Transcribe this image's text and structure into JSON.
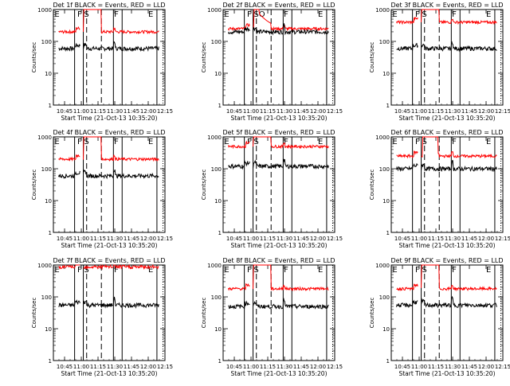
{
  "chart_data": {
    "type": "line",
    "xlabel": "Start Time (21-Oct-13 10:35:20)",
    "ylabel": "Counts/sec",
    "yscale": "log",
    "ylim": [
      1,
      1000
    ],
    "xlim": [
      10.583,
      12.25
    ],
    "x_ticks": [
      10.75,
      11.0,
      11.25,
      11.5,
      11.75,
      12.0,
      12.25
    ],
    "x_tick_labels": [
      "10:45",
      "11:00",
      "11:15",
      "11:30",
      "11:45",
      "12:00",
      "12:15"
    ],
    "y_ticks": [
      1,
      10,
      100,
      1000
    ],
    "y_tick_labels": [
      "1",
      "10",
      "100",
      "1000"
    ],
    "series_colors": {
      "Events": "#000000",
      "LLD": "#ff0000"
    },
    "panels": [
      {
        "title": "Det 1f BLACK = Events, RED = LLD",
        "events": 60,
        "lld": 200,
        "lld_mode": "flat",
        "lld_peak": 1200,
        "solid_lines": [
          10.9,
          11.03,
          11.48,
          11.61,
          12.13
        ],
        "dashed_lines": [
          11.08,
          11.3
        ],
        "dotted_lines": [
          12.22
        ],
        "region_labels": [
          {
            "t": "E",
            "x": 10.6
          },
          {
            "t": "F",
            "x": 10.94
          },
          {
            "t": "S",
            "x": 11.04
          },
          {
            "t": "F",
            "x": 11.49
          },
          {
            "t": "E",
            "x": 12.0
          }
        ]
      },
      {
        "title": "Det 2f BLACK = Events, RED = LLD",
        "events": 200,
        "lld": 250,
        "lld_mode": "flare",
        "lld_peak": 1200,
        "solid_lines": [
          10.9,
          11.03,
          11.48,
          11.61,
          12.13
        ],
        "dashed_lines": [
          11.08,
          11.3
        ],
        "dotted_lines": [
          12.22
        ],
        "region_labels": [
          {
            "t": "E",
            "x": 10.6
          },
          {
            "t": "F",
            "x": 10.94
          },
          {
            "t": "SO",
            "x": 11.04
          },
          {
            "t": "F",
            "x": 11.49
          },
          {
            "t": "E",
            "x": 12.0
          }
        ]
      },
      {
        "title": "Det 3f BLACK = Events, RED = LLD",
        "events": 60,
        "lld": 400,
        "lld_mode": "flat",
        "lld_peak": 1200,
        "solid_lines": [
          10.9,
          11.03,
          11.48,
          11.61,
          12.13
        ],
        "dashed_lines": [
          11.08,
          11.3
        ],
        "dotted_lines": [
          12.22
        ],
        "region_labels": [
          {
            "t": "E",
            "x": 10.6
          },
          {
            "t": "F",
            "x": 10.94
          },
          {
            "t": "S",
            "x": 11.04
          },
          {
            "t": "F",
            "x": 11.49
          },
          {
            "t": "E",
            "x": 12.0
          }
        ]
      },
      {
        "title": "Det 4f BLACK = Events, RED = LLD",
        "events": 60,
        "lld": 200,
        "lld_mode": "flat",
        "lld_peak": 1200,
        "solid_lines": [
          10.9,
          11.03,
          11.48,
          11.61,
          12.13
        ],
        "dashed_lines": [
          11.08,
          11.3
        ],
        "dotted_lines": [
          12.22
        ],
        "region_labels": [
          {
            "t": "E",
            "x": 10.6
          },
          {
            "t": "F",
            "x": 10.94
          },
          {
            "t": "S",
            "x": 11.04
          },
          {
            "t": "F",
            "x": 11.49
          },
          {
            "t": "E",
            "x": 12.0
          }
        ]
      },
      {
        "title": "Det 5f BLACK = Events, RED = LLD",
        "events": 120,
        "lld": 500,
        "lld_mode": "flat",
        "lld_peak": 1200,
        "solid_lines": [
          10.9,
          11.03,
          11.48,
          11.61,
          12.13
        ],
        "dashed_lines": [
          11.08,
          11.3
        ],
        "dotted_lines": [
          12.22
        ],
        "region_labels": [
          {
            "t": "E",
            "x": 10.6
          },
          {
            "t": "F",
            "x": 10.94
          },
          {
            "t": "S",
            "x": 11.04
          },
          {
            "t": "F",
            "x": 11.49
          },
          {
            "t": "E",
            "x": 12.0
          }
        ]
      },
      {
        "title": "Det 6f BLACK = Events, RED = LLD",
        "events": 100,
        "lld": 250,
        "lld_mode": "flare6",
        "lld_peak": 1200,
        "solid_lines": [
          10.9,
          11.03,
          11.48,
          11.61,
          12.13
        ],
        "dashed_lines": [
          11.08,
          11.3
        ],
        "dotted_lines": [
          12.22
        ],
        "region_labels": [
          {
            "t": "E",
            "x": 10.6
          },
          {
            "t": "F",
            "x": 10.94
          },
          {
            "t": "S",
            "x": 11.04
          },
          {
            "t": "F",
            "x": 11.49
          },
          {
            "t": "E",
            "x": 12.0
          }
        ]
      },
      {
        "title": "Det 7f BLACK = Events, RED = LLD",
        "events": 55,
        "lld": 900,
        "lld_mode": "sat",
        "lld_peak": 1200,
        "solid_lines": [
          10.9,
          11.03,
          11.48,
          11.61,
          12.13
        ],
        "dashed_lines": [
          11.08,
          11.3
        ],
        "dotted_lines": [
          12.22
        ],
        "region_labels": [
          {
            "t": "E",
            "x": 10.6
          },
          {
            "t": "F",
            "x": 10.94
          },
          {
            "t": "S",
            "x": 11.04
          },
          {
            "t": "F",
            "x": 11.49
          },
          {
            "t": "E",
            "x": 12.0
          }
        ]
      },
      {
        "title": "Det 8f BLACK = Events, RED = LLD",
        "events": 50,
        "lld": 180,
        "lld_mode": "flat",
        "lld_peak": 1200,
        "solid_lines": [
          10.9,
          11.03,
          11.48,
          11.61,
          12.13
        ],
        "dashed_lines": [
          11.08,
          11.3
        ],
        "dotted_lines": [
          12.22
        ],
        "region_labels": [
          {
            "t": "E",
            "x": 10.6
          },
          {
            "t": "F",
            "x": 10.94
          },
          {
            "t": "S",
            "x": 11.04
          },
          {
            "t": "F",
            "x": 11.49
          },
          {
            "t": "E",
            "x": 12.0
          }
        ]
      },
      {
        "title": "Det 9f BLACK = Events, RED = LLD",
        "events": 55,
        "lld": 180,
        "lld_mode": "flat",
        "lld_peak": 1200,
        "solid_lines": [
          10.9,
          11.03,
          11.48,
          11.61,
          12.13
        ],
        "dashed_lines": [
          11.08,
          11.3
        ],
        "dotted_lines": [
          12.22
        ],
        "region_labels": [
          {
            "t": "E",
            "x": 10.6
          },
          {
            "t": "F",
            "x": 10.94
          },
          {
            "t": "S",
            "x": 11.04
          },
          {
            "t": "F",
            "x": 11.49
          },
          {
            "t": "E",
            "x": 12.0
          }
        ]
      }
    ]
  }
}
